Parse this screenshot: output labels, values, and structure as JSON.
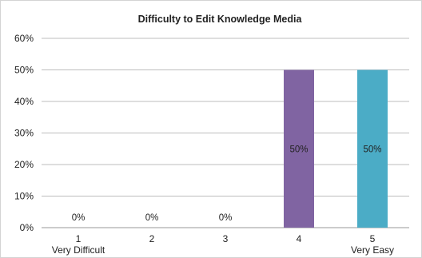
{
  "chart_data": {
    "type": "bar",
    "title": "Difficulty  to Edit Knowledge  Media",
    "categories": [
      "1",
      "2",
      "3",
      "4",
      "5"
    ],
    "category_sublabels": [
      "Very Difficult",
      "",
      "",
      "",
      "Very Easy"
    ],
    "values": [
      0,
      0,
      0,
      50,
      50
    ],
    "data_labels": [
      "0%",
      "0%",
      "0%",
      "50%",
      "50%"
    ],
    "bar_colors": [
      "#8064a2",
      "#8064a2",
      "#8064a2",
      "#8064a2",
      "#4bacc6"
    ],
    "ylim": [
      0,
      60
    ],
    "yticks": [
      0,
      10,
      20,
      30,
      40,
      50,
      60
    ],
    "ytick_labels": [
      "0%",
      "10%",
      "20%",
      "30%",
      "40%",
      "50%",
      "60%"
    ],
    "xlabel": "",
    "ylabel": "",
    "grid": true,
    "legend": "none"
  }
}
